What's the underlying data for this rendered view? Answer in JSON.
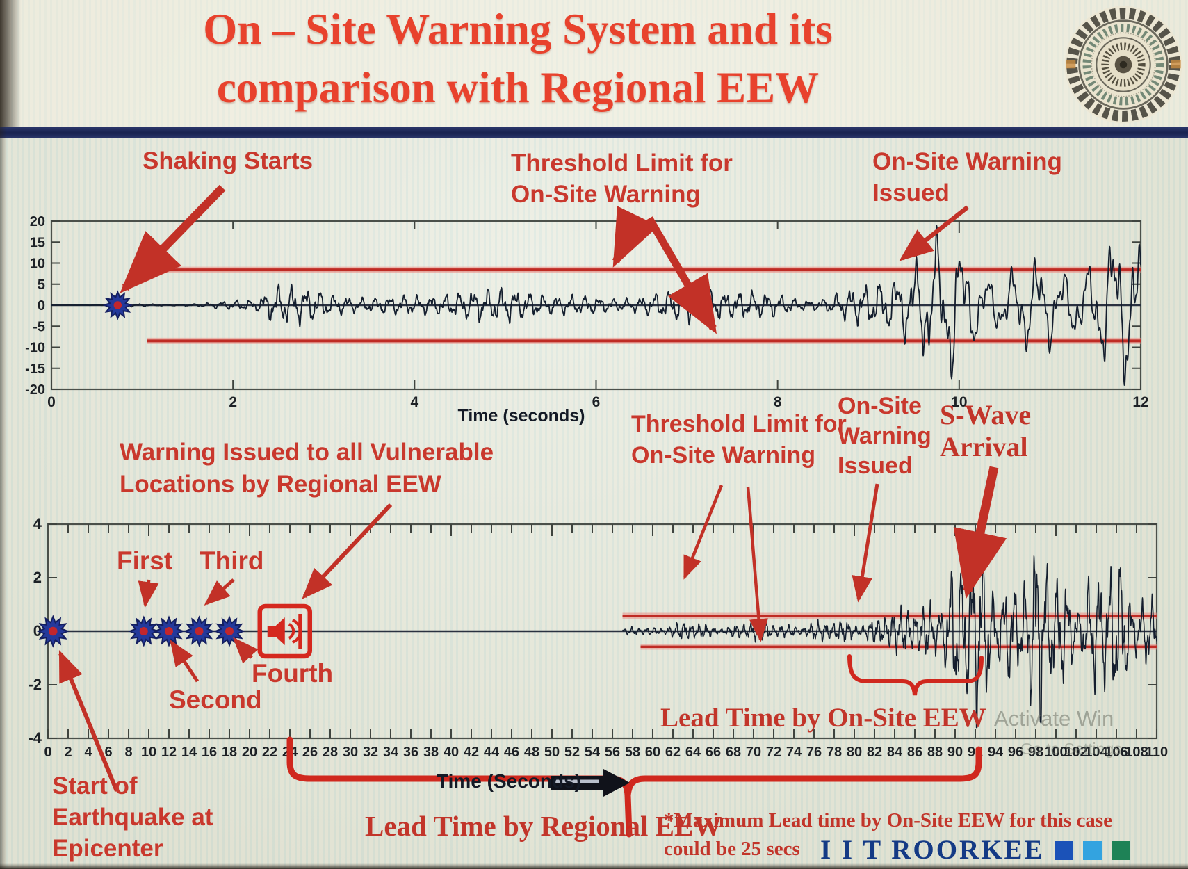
{
  "title": {
    "line1": "On – Site Warning System and its",
    "line2": "comparison with Regional EEW"
  },
  "logo": {
    "name": "iit-roorkee-emblem"
  },
  "chart_data": [
    {
      "type": "line",
      "id": "onsite-accel-record",
      "xlabel": "Time (seconds)",
      "xlim": [
        0,
        12
      ],
      "ylim": [
        -20,
        20
      ],
      "xticks": [
        0,
        2,
        4,
        6,
        8,
        10,
        12
      ],
      "yticks": [
        -20,
        -15,
        -10,
        -5,
        0,
        5,
        10,
        15,
        20
      ],
      "grid": false,
      "threshold": {
        "upper": 8.4,
        "lower": -8.5,
        "x_start": 1.05
      },
      "events": {
        "shaking_starts_t": 0.73,
        "onsite_warning_issued_t": 9.3
      },
      "wave": {
        "t0": 0,
        "t1": 12,
        "dt": 0.004,
        "clip": 19,
        "freq": {
          "f1": 6.5,
          "f2": 3.6,
          "break_t": 8.9,
          "ramp": 0.9
        },
        "mod": {
          "m1": 2.7,
          "m2": 6.33
        },
        "envelope": [
          [
            0,
            0
          ],
          [
            0.7,
            0.05
          ],
          [
            0.78,
            0.35
          ],
          [
            1.3,
            0.45
          ],
          [
            1.9,
            1.0
          ],
          [
            2.25,
            1.4
          ],
          [
            2.45,
            4.8
          ],
          [
            2.8,
            3.4
          ],
          [
            3.1,
            2.6
          ],
          [
            3.5,
            4.4
          ],
          [
            4.0,
            3.0
          ],
          [
            4.4,
            4.0
          ],
          [
            4.8,
            2.9
          ],
          [
            5.3,
            3.6
          ],
          [
            5.8,
            3.0
          ],
          [
            6.3,
            4.0
          ],
          [
            6.8,
            3.1
          ],
          [
            7.3,
            3.7
          ],
          [
            7.8,
            3.0
          ],
          [
            8.2,
            3.6
          ],
          [
            8.6,
            4.2
          ],
          [
            9.0,
            5.2
          ],
          [
            9.2,
            6.6
          ],
          [
            9.45,
            9.0
          ],
          [
            9.7,
            12
          ],
          [
            9.95,
            15.5
          ],
          [
            10.2,
            13
          ],
          [
            10.5,
            16
          ],
          [
            10.8,
            17
          ],
          [
            11.1,
            13.5
          ],
          [
            11.4,
            12
          ],
          [
            11.7,
            14.5
          ],
          [
            12,
            12.5
          ]
        ]
      }
    },
    {
      "type": "line",
      "id": "regional-vs-onsite-record",
      "xlabel": "Time (Seconds)",
      "xlim": [
        0,
        110
      ],
      "ylim": [
        -4,
        4
      ],
      "xticks": [
        0,
        2,
        4,
        6,
        8,
        10,
        12,
        14,
        16,
        18,
        20,
        22,
        24,
        26,
        28,
        30,
        32,
        34,
        36,
        38,
        40,
        42,
        44,
        46,
        48,
        50,
        52,
        54,
        56,
        58,
        60,
        62,
        64,
        66,
        68,
        70,
        72,
        74,
        76,
        78,
        80,
        82,
        84,
        86,
        88,
        90,
        92,
        94,
        96,
        98,
        100,
        102,
        104,
        106,
        108,
        110
      ],
      "yticks": [
        -4,
        -2,
        0,
        2,
        4
      ],
      "grid": false,
      "threshold": {
        "upper": 0.58,
        "lower": -0.58,
        "x_start": 57
      },
      "events": {
        "earthquake_start_t": 0.5,
        "p_detections": [
          {
            "label": "First",
            "t": 9.5
          },
          {
            "label": "Second",
            "t": 12
          },
          {
            "label": "Third",
            "t": 15
          },
          {
            "label": "Fourth",
            "t": 18
          }
        ],
        "regional_warning_t": 23.5,
        "onsite_warning_issued_t": 80,
        "s_wave_arrival_t": 92.5,
        "lead_time_regional_span": [
          24,
          92.5
        ],
        "lead_time_onsite_span": [
          80,
          92.5
        ]
      },
      "wave": {
        "t0": 57,
        "t1": 110,
        "dt": 0.012,
        "clip": 3.6,
        "freq": {
          "f1": 1.35,
          "f2": 0.95,
          "break_t": 87,
          "ramp": 1.5
        },
        "mod": {
          "m1": 0.9,
          "m2": 2.3
        },
        "envelope": [
          [
            57,
            0.05
          ],
          [
            58,
            0.18
          ],
          [
            60,
            0.22
          ],
          [
            63,
            0.28
          ],
          [
            66,
            0.25
          ],
          [
            69,
            0.33
          ],
          [
            72,
            0.28
          ],
          [
            75,
            0.35
          ],
          [
            78,
            0.3
          ],
          [
            80,
            0.45
          ],
          [
            81.5,
            0.55
          ],
          [
            83,
            0.72
          ],
          [
            84.5,
            0.6
          ],
          [
            86,
            0.95
          ],
          [
            87.5,
            1.5
          ],
          [
            88.5,
            2.4
          ],
          [
            89.5,
            2.7
          ],
          [
            90.5,
            2.2
          ],
          [
            91.5,
            2.9
          ],
          [
            92.5,
            3.2
          ],
          [
            93.5,
            2.7
          ],
          [
            95,
            3.0
          ],
          [
            96.5,
            2.4
          ],
          [
            98,
            2.8
          ],
          [
            100,
            2.3
          ],
          [
            102,
            2.6
          ],
          [
            104,
            2.1
          ],
          [
            106,
            2.3
          ],
          [
            108,
            1.9
          ],
          [
            110,
            2.0
          ]
        ]
      }
    }
  ],
  "annotations": {
    "chart1": {
      "shaking_starts": "Shaking Starts",
      "threshold_line1": "Threshold Limit for",
      "threshold_line2": "On-Site Warning",
      "warning_line1": "On-Site Warning",
      "warning_line2": "Issued",
      "xlabel": "Time (seconds)"
    },
    "chart2": {
      "regional_line1": "Warning Issued to all Vulnerable",
      "regional_line2": "Locations by Regional EEW",
      "first": "First",
      "second": "Second",
      "third": "Third",
      "fourth": "Fourth",
      "start_line1": "Start of",
      "start_line2": "Earthquake at",
      "start_line3": "Epicenter",
      "threshold_line1": "Threshold Limit for",
      "threshold_line2": "On-Site Warning",
      "onsite_line1": "On-Site",
      "onsite_line2": "Warning",
      "onsite_line3": "Issued",
      "swave_line1": "S-Wave",
      "swave_line2": "Arrival",
      "lead_onsite": "Lead Time by On-Site EEW",
      "lead_regional": "Lead Time by Regional EEW",
      "note_line1": "*Maximum Lead time by On-Site EEW for this case",
      "note_line2": "could be 25 secs",
      "xlabel": "Time (Seconds)"
    }
  },
  "footer": {
    "brand": "I I T ROORKEE",
    "watermark_line1": "Activate Win",
    "watermark_line2": "Go to Settings"
  },
  "colors": {
    "accent_red": "#c9382d",
    "threshold_red": "#bf2b24",
    "navy_bar": "#18224f",
    "waveform": "#141e2e",
    "brand_navy": "#143a85",
    "brand_squares": [
      "#1b52b8",
      "#33a3e0",
      "#1e8256"
    ]
  }
}
